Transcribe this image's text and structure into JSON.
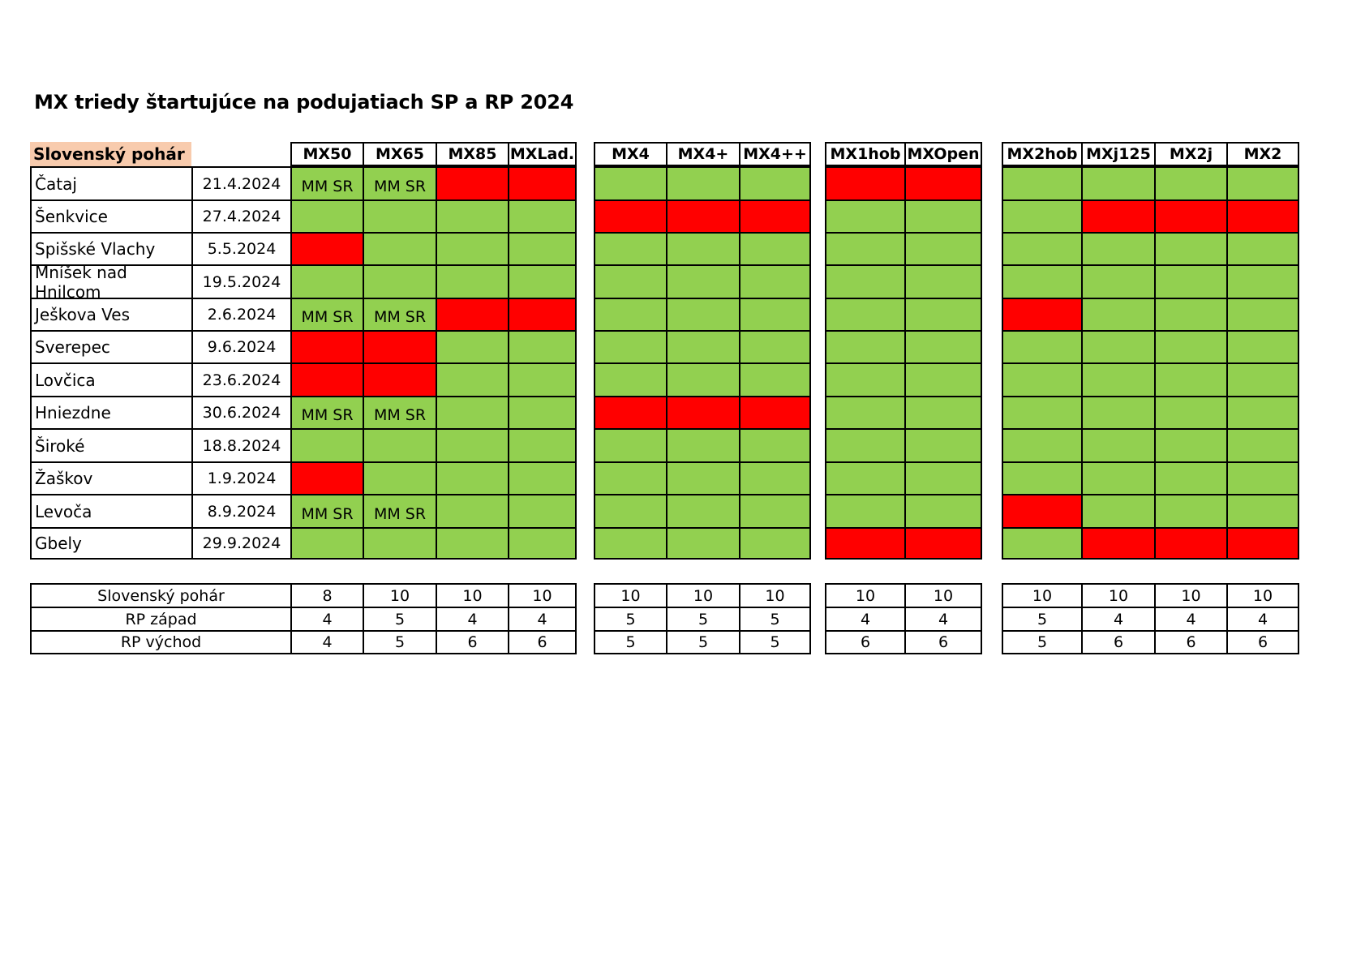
{
  "title": "MX triedy štartujúce na podujatiach SP a RP 2024",
  "series_label": "Slovenský pohár",
  "colors": {
    "green": "#92d050",
    "red": "#ff0000",
    "header_accent": "#f8cbad"
  },
  "groups": [
    {
      "classes": [
        "MX50",
        "MX65",
        "MX85",
        "MXLad."
      ]
    },
    {
      "classes": [
        "MX4",
        "MX4+",
        "MX4++"
      ]
    },
    {
      "classes": [
        "MX1hob",
        "MXOpen"
      ]
    },
    {
      "classes": [
        "MX2hob",
        "MXj125",
        "MX2j",
        "MX2"
      ]
    }
  ],
  "events": [
    {
      "name": "Čataj",
      "date": "21.4.2024",
      "cells": [
        [
          "mm",
          "mm",
          "red",
          "red"
        ],
        [
          "green",
          "green",
          "green"
        ],
        [
          "red",
          "red"
        ],
        [
          "green",
          "green",
          "green",
          "green"
        ]
      ]
    },
    {
      "name": "Šenkvice",
      "date": "27.4.2024",
      "cells": [
        [
          "green",
          "green",
          "green",
          "green"
        ],
        [
          "red",
          "red",
          "red"
        ],
        [
          "green",
          "green"
        ],
        [
          "green",
          "red",
          "red",
          "red"
        ]
      ]
    },
    {
      "name": "Spišské Vlachy",
      "date": "5.5.2024",
      "cells": [
        [
          "red",
          "green",
          "green",
          "green"
        ],
        [
          "green",
          "green",
          "green"
        ],
        [
          "green",
          "green"
        ],
        [
          "green",
          "green",
          "green",
          "green"
        ]
      ]
    },
    {
      "name": "Mníšek nad Hnilcom",
      "date": "19.5.2024",
      "cells": [
        [
          "green",
          "green",
          "green",
          "green"
        ],
        [
          "green",
          "green",
          "green"
        ],
        [
          "green",
          "green"
        ],
        [
          "green",
          "green",
          "green",
          "green"
        ]
      ]
    },
    {
      "name": "Ješkova Ves",
      "date": "2.6.2024",
      "cells": [
        [
          "mm",
          "mm",
          "red",
          "red"
        ],
        [
          "green",
          "green",
          "green"
        ],
        [
          "green",
          "green"
        ],
        [
          "red",
          "green",
          "green",
          "green"
        ]
      ]
    },
    {
      "name": "Sverepec",
      "date": "9.6.2024",
      "cells": [
        [
          "red",
          "red",
          "green",
          "green"
        ],
        [
          "green",
          "green",
          "green"
        ],
        [
          "green",
          "green"
        ],
        [
          "green",
          "green",
          "green",
          "green"
        ]
      ]
    },
    {
      "name": "Lovčica",
      "date": "23.6.2024",
      "cells": [
        [
          "red",
          "red",
          "green",
          "green"
        ],
        [
          "green",
          "green",
          "green"
        ],
        [
          "green",
          "green"
        ],
        [
          "green",
          "green",
          "green",
          "green"
        ]
      ]
    },
    {
      "name": "Hniezdne",
      "date": "30.6.2024",
      "cells": [
        [
          "mm",
          "mm",
          "green",
          "green"
        ],
        [
          "red",
          "red",
          "red"
        ],
        [
          "green",
          "green"
        ],
        [
          "green",
          "green",
          "green",
          "green"
        ]
      ]
    },
    {
      "name": "Široké",
      "date": "18.8.2024",
      "cells": [
        [
          "green",
          "green",
          "green",
          "green"
        ],
        [
          "green",
          "green",
          "green"
        ],
        [
          "green",
          "green"
        ],
        [
          "green",
          "green",
          "green",
          "green"
        ]
      ]
    },
    {
      "name": "Žaškov",
      "date": "1.9.2024",
      "cells": [
        [
          "red",
          "green",
          "green",
          "green"
        ],
        [
          "green",
          "green",
          "green"
        ],
        [
          "green",
          "green"
        ],
        [
          "green",
          "green",
          "green",
          "green"
        ]
      ]
    },
    {
      "name": "Levoča",
      "date": "8.9.2024",
      "cells": [
        [
          "mm",
          "mm",
          "green",
          "green"
        ],
        [
          "green",
          "green",
          "green"
        ],
        [
          "green",
          "green"
        ],
        [
          "red",
          "green",
          "green",
          "green"
        ]
      ]
    },
    {
      "name": "Gbely",
      "date": "29.9.2024",
      "cells": [
        [
          "green",
          "green",
          "green",
          "green"
        ],
        [
          "green",
          "green",
          "green"
        ],
        [
          "red",
          "red"
        ],
        [
          "green",
          "red",
          "red",
          "red"
        ]
      ]
    }
  ],
  "mm_label": "MM SR",
  "summary": [
    {
      "label": "Slovenský pohár",
      "values": [
        [
          "8",
          "10",
          "10",
          "10"
        ],
        [
          "10",
          "10",
          "10"
        ],
        [
          "10",
          "10"
        ],
        [
          "10",
          "10",
          "10",
          "10"
        ]
      ]
    },
    {
      "label": "RP západ",
      "values": [
        [
          "4",
          "5",
          "4",
          "4"
        ],
        [
          "5",
          "5",
          "5"
        ],
        [
          "4",
          "4"
        ],
        [
          "5",
          "4",
          "4",
          "4"
        ]
      ]
    },
    {
      "label": "RP východ",
      "values": [
        [
          "4",
          "5",
          "6",
          "6"
        ],
        [
          "5",
          "5",
          "5"
        ],
        [
          "6",
          "6"
        ],
        [
          "5",
          "6",
          "6",
          "6"
        ]
      ]
    }
  ]
}
